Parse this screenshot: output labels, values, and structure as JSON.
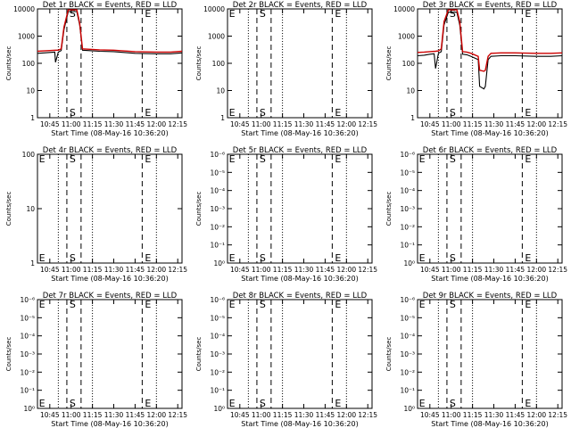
{
  "chart_data": [
    {
      "type": "line",
      "title": "Det 1r BLACK = Events, RED = LLD",
      "xlabel": "Start Time (08-May-16 10:36:20)",
      "ylabel": "Counts/sec",
      "x_ticks": [
        "10:45",
        "11:00",
        "11:15",
        "11:30",
        "11:45",
        "12:00",
        "12:15"
      ],
      "xlim": [
        "10:36:20",
        "12:18:00"
      ],
      "y_scale": "log",
      "y_ticks": [
        "1",
        "10",
        "100",
        "1000",
        "10000"
      ],
      "ylim": [
        1,
        12000
      ],
      "grid": false,
      "markers": [
        {
          "label": "",
          "time": "10:51:00",
          "style": "dotted"
        },
        {
          "label": "S",
          "time": "10:57:00",
          "style": "dashed"
        },
        {
          "label": "",
          "time": "11:07:00",
          "style": "dashed"
        },
        {
          "label": "",
          "time": "11:15:00",
          "style": "dotted"
        },
        {
          "label": "E",
          "time": "11:50:00",
          "style": "dashed"
        },
        {
          "label": "",
          "time": "12:00:00",
          "style": "dotted"
        }
      ],
      "series": [
        {
          "color": "#000000",
          "x": [
            "10:36:20",
            "10:41:00",
            "10:45:00",
            "10:48:30",
            "10:49:00",
            "10:51:00",
            "10:53:00",
            "10:55:00",
            "10:58:00",
            "11:01:00",
            "11:04:00",
            "11:06:00",
            "11:08:00",
            "11:12:00",
            "11:20:00",
            "11:30:00",
            "11:45:00",
            "12:00:00",
            "12:10:00",
            "12:18:00"
          ],
          "y": [
            260,
            270,
            280,
            290,
            120,
            290,
            330,
            2000,
            9500,
            9500,
            9500,
            3000,
            340,
            330,
            310,
            300,
            260,
            250,
            250,
            270
          ]
        },
        {
          "color": "#cc0000",
          "x": [
            "10:36:20",
            "10:41:00",
            "10:45:00",
            "10:49:00",
            "10:51:00",
            "10:53:00",
            "10:55:00",
            "10:58:00",
            "11:01:00",
            "11:04:00",
            "11:06:00",
            "11:08:00",
            "11:12:00",
            "11:20:00",
            "11:30:00",
            "11:45:00",
            "12:00:00",
            "12:10:00",
            "12:18:00"
          ],
          "y": [
            310,
            320,
            330,
            340,
            340,
            380,
            2500,
            11000,
            11000,
            11000,
            3500,
            380,
            370,
            350,
            340,
            300,
            290,
            290,
            310
          ]
        }
      ]
    },
    {
      "type": "line",
      "title": "Det 2r BLACK = Events, RED = LLD",
      "xlabel": "Start Time (08-May-16 10:36:20)",
      "ylabel": "Counts/sec",
      "x_ticks": [
        "10:45",
        "11:00",
        "11:15",
        "11:30",
        "11:45",
        "12:00",
        "12:15"
      ],
      "xlim": [
        "10:36:20",
        "12:18:00"
      ],
      "y_scale": "log",
      "y_ticks": [
        "1",
        "10",
        "100",
        "1000",
        "10000"
      ],
      "ylim": [
        1,
        12000
      ],
      "grid": false,
      "markers": [
        {
          "label": "E",
          "time": "10:37:20",
          "style": "none"
        },
        {
          "label": "",
          "time": "10:51:00",
          "style": "dotted"
        },
        {
          "label": "S",
          "time": "10:57:00",
          "style": "dashed"
        },
        {
          "label": "",
          "time": "11:07:00",
          "style": "dashed"
        },
        {
          "label": "",
          "time": "11:15:00",
          "style": "dotted"
        },
        {
          "label": "E",
          "time": "11:50:00",
          "style": "dashed"
        },
        {
          "label": "",
          "time": "12:00:00",
          "style": "dotted"
        }
      ],
      "series": []
    },
    {
      "type": "line",
      "title": "Det 3r BLACK = Events, RED = LLD",
      "xlabel": "Start Time (08-May-16 10:36:20)",
      "ylabel": "Counts/sec",
      "x_ticks": [
        "10:45",
        "11:00",
        "11:15",
        "11:30",
        "11:45",
        "12:00",
        "12:15"
      ],
      "xlim": [
        "10:36:20",
        "12:18:00"
      ],
      "y_scale": "log",
      "y_ticks": [
        "1",
        "10",
        "100",
        "1000",
        "10000"
      ],
      "ylim": [
        1,
        12000
      ],
      "grid": false,
      "markers": [
        {
          "label": "",
          "time": "10:51:00",
          "style": "dotted"
        },
        {
          "label": "S",
          "time": "10:57:00",
          "style": "dashed"
        },
        {
          "label": "",
          "time": "11:07:00",
          "style": "dashed"
        },
        {
          "label": "",
          "time": "11:15:00",
          "style": "dotted"
        },
        {
          "label": "E",
          "time": "11:50:00",
          "style": "dashed"
        },
        {
          "label": "",
          "time": "12:00:00",
          "style": "dotted"
        }
      ],
      "series": [
        {
          "color": "#000000",
          "x": [
            "10:36:20",
            "10:41:00",
            "10:45:00",
            "10:48:00",
            "10:49:00",
            "10:51:00",
            "10:53:00",
            "10:55:00",
            "10:58:00",
            "11:01:00",
            "11:04:00",
            "11:06:00",
            "11:08:00",
            "11:11:00",
            "11:14:00",
            "11:19:00",
            "11:20:00",
            "11:23:00",
            "11:24:00",
            "11:26:00",
            "11:28:00",
            "11:35:00",
            "11:45:00",
            "12:00:00",
            "12:10:00",
            "12:18:00"
          ],
          "y": [
            210,
            220,
            240,
            250,
            70,
            260,
            300,
            3000,
            9000,
            9000,
            9000,
            3000,
            240,
            230,
            200,
            150,
            15,
            12,
            15,
            150,
            200,
            210,
            210,
            200,
            200,
            210
          ]
        },
        {
          "color": "#cc0000",
          "x": [
            "10:36:20",
            "10:41:00",
            "10:45:00",
            "10:49:00",
            "10:51:00",
            "10:53:00",
            "10:55:00",
            "10:58:00",
            "11:01:00",
            "11:04:00",
            "11:06:00",
            "11:08:00",
            "11:11:00",
            "11:14:00",
            "11:19:00",
            "11:20:00",
            "11:23:00",
            "11:24:00",
            "11:26:00",
            "11:28:00",
            "11:35:00",
            "11:45:00",
            "12:00:00",
            "12:10:00",
            "12:18:00"
          ],
          "y": [
            280,
            290,
            300,
            310,
            320,
            380,
            4000,
            11000,
            11000,
            11000,
            4000,
            300,
            290,
            260,
            200,
            60,
            55,
            60,
            200,
            260,
            270,
            270,
            260,
            260,
            270
          ]
        }
      ]
    },
    {
      "type": "line",
      "title": "Det 4r BLACK = Events, RED = LLD",
      "xlabel": "Start Time (08-May-16 10:36:20)",
      "ylabel": "Counts/sec",
      "x_ticks": [
        "10:45",
        "11:00",
        "11:15",
        "11:30",
        "11:45",
        "12:00",
        "12:15"
      ],
      "xlim": [
        "10:36:20",
        "12:18:00"
      ],
      "y_scale": "log",
      "y_ticks": [
        "1",
        "10",
        "100"
      ],
      "ylim": [
        1,
        100
      ],
      "grid": false,
      "markers": [
        {
          "label": "E",
          "time": "10:37:20",
          "style": "none"
        },
        {
          "label": "",
          "time": "10:51:00",
          "style": "dotted"
        },
        {
          "label": "S",
          "time": "10:57:00",
          "style": "dashed"
        },
        {
          "label": "",
          "time": "11:07:00",
          "style": "dashed"
        },
        {
          "label": "",
          "time": "11:15:00",
          "style": "dotted"
        },
        {
          "label": "E",
          "time": "11:50:00",
          "style": "dashed"
        },
        {
          "label": "",
          "time": "12:00:00",
          "style": "dotted"
        }
      ],
      "series": []
    },
    {
      "type": "line",
      "title": "Det 5r BLACK = Events, RED = LLD",
      "xlabel": "Start Time (08-May-16 10:36:20)",
      "ylabel": "Counts/sec",
      "x_ticks": [
        "10:45",
        "11:00",
        "11:15",
        "11:30",
        "11:45",
        "12:00",
        "12:15"
      ],
      "xlim": [
        "10:36:20",
        "12:18:00"
      ],
      "y_scale": "log",
      "y_ticks": [
        "10⁰",
        "10⁻¹",
        "10⁻²",
        "10⁻³",
        "10⁻⁴",
        "10⁻⁵",
        "10⁻⁶"
      ],
      "ylim": [
        1,
        1000000
      ],
      "grid": false,
      "markers": [
        {
          "label": "E",
          "time": "10:37:20",
          "style": "none"
        },
        {
          "label": "",
          "time": "10:51:00",
          "style": "dotted"
        },
        {
          "label": "S",
          "time": "10:57:00",
          "style": "dashed"
        },
        {
          "label": "",
          "time": "11:07:00",
          "style": "dashed"
        },
        {
          "label": "",
          "time": "11:15:00",
          "style": "dotted"
        },
        {
          "label": "E",
          "time": "11:50:00",
          "style": "dashed"
        },
        {
          "label": "",
          "time": "12:00:00",
          "style": "dotted"
        }
      ],
      "series": []
    },
    {
      "type": "line",
      "title": "Det 6r BLACK = Events, RED = LLD",
      "xlabel": "Start Time (08-May-16 10:36:20)",
      "ylabel": "Counts/sec",
      "x_ticks": [
        "10:45",
        "11:00",
        "11:15",
        "11:30",
        "11:45",
        "12:00",
        "12:15"
      ],
      "xlim": [
        "10:36:20",
        "12:18:00"
      ],
      "y_scale": "log",
      "y_ticks": [
        "10⁰",
        "10⁻¹",
        "10⁻²",
        "10⁻³",
        "10⁻⁴",
        "10⁻⁵",
        "10⁻⁶"
      ],
      "ylim": [
        1,
        1000000
      ],
      "grid": false,
      "markers": [
        {
          "label": "E",
          "time": "10:37:20",
          "style": "none"
        },
        {
          "label": "",
          "time": "10:51:00",
          "style": "dotted"
        },
        {
          "label": "S",
          "time": "10:57:00",
          "style": "dashed"
        },
        {
          "label": "",
          "time": "11:07:00",
          "style": "dashed"
        },
        {
          "label": "",
          "time": "11:15:00",
          "style": "dotted"
        },
        {
          "label": "E",
          "time": "11:50:00",
          "style": "dashed"
        },
        {
          "label": "",
          "time": "12:00:00",
          "style": "dotted"
        }
      ],
      "series": []
    },
    {
      "type": "line",
      "title": "Det 7r BLACK = Events, RED = LLD",
      "xlabel": "Start Time (08-May-16 10:36:20)",
      "ylabel": "Counts/sec",
      "x_ticks": [
        "10:45",
        "11:00",
        "11:15",
        "11:30",
        "11:45",
        "12:00",
        "12:15"
      ],
      "xlim": [
        "10:36:20",
        "12:18:00"
      ],
      "y_scale": "log",
      "y_ticks": [
        "10⁰",
        "10⁻¹",
        "10⁻²",
        "10⁻³",
        "10⁻⁴",
        "10⁻⁵",
        "10⁻⁶"
      ],
      "ylim": [
        1,
        1000000
      ],
      "grid": false,
      "markers": [
        {
          "label": "E",
          "time": "10:37:20",
          "style": "none"
        },
        {
          "label": "",
          "time": "10:51:00",
          "style": "dotted"
        },
        {
          "label": "S",
          "time": "10:57:00",
          "style": "dashed"
        },
        {
          "label": "",
          "time": "11:07:00",
          "style": "dashed"
        },
        {
          "label": "",
          "time": "11:15:00",
          "style": "dotted"
        },
        {
          "label": "E",
          "time": "11:50:00",
          "style": "dashed"
        },
        {
          "label": "",
          "time": "12:00:00",
          "style": "dotted"
        }
      ],
      "series": []
    },
    {
      "type": "line",
      "title": "Det 8r BLACK = Events, RED = LLD",
      "xlabel": "Start Time (08-May-16 10:36:20)",
      "ylabel": "Counts/sec",
      "x_ticks": [
        "10:45",
        "11:00",
        "11:15",
        "11:30",
        "11:45",
        "12:00",
        "12:15"
      ],
      "xlim": [
        "10:36:20",
        "12:18:00"
      ],
      "y_scale": "log",
      "y_ticks": [
        "10⁰",
        "10⁻¹",
        "10⁻²",
        "10⁻³",
        "10⁻⁴",
        "10⁻⁵",
        "10⁻⁶"
      ],
      "ylim": [
        1,
        1000000
      ],
      "grid": false,
      "markers": [
        {
          "label": "E",
          "time": "10:37:20",
          "style": "none"
        },
        {
          "label": "",
          "time": "10:51:00",
          "style": "dotted"
        },
        {
          "label": "S",
          "time": "10:57:00",
          "style": "dashed"
        },
        {
          "label": "",
          "time": "11:07:00",
          "style": "dashed"
        },
        {
          "label": "",
          "time": "11:15:00",
          "style": "dotted"
        },
        {
          "label": "E",
          "time": "11:50:00",
          "style": "dashed"
        },
        {
          "label": "",
          "time": "12:00:00",
          "style": "dotted"
        }
      ],
      "series": []
    },
    {
      "type": "line",
      "title": "Det 9r BLACK = Events, RED = LLD",
      "xlabel": "Start Time (08-May-16 10:36:20)",
      "ylabel": "Counts/sec",
      "x_ticks": [
        "10:45",
        "11:00",
        "11:15",
        "11:30",
        "11:45",
        "12:00",
        "12:15"
      ],
      "xlim": [
        "10:36:20",
        "12:18:00"
      ],
      "y_scale": "log",
      "y_ticks": [
        "10⁰",
        "10⁻¹",
        "10⁻²",
        "10⁻³",
        "10⁻⁴",
        "10⁻⁵",
        "10⁻⁶"
      ],
      "ylim": [
        1,
        1000000
      ],
      "grid": false,
      "markers": [
        {
          "label": "E",
          "time": "10:37:20",
          "style": "none"
        },
        {
          "label": "",
          "time": "10:51:00",
          "style": "dotted"
        },
        {
          "label": "S",
          "time": "10:57:00",
          "style": "dashed"
        },
        {
          "label": "",
          "time": "11:07:00",
          "style": "dashed"
        },
        {
          "label": "",
          "time": "11:15:00",
          "style": "dotted"
        },
        {
          "label": "E",
          "time": "11:50:00",
          "style": "dashed"
        },
        {
          "label": "",
          "time": "12:00:00",
          "style": "dotted"
        }
      ],
      "series": []
    }
  ]
}
